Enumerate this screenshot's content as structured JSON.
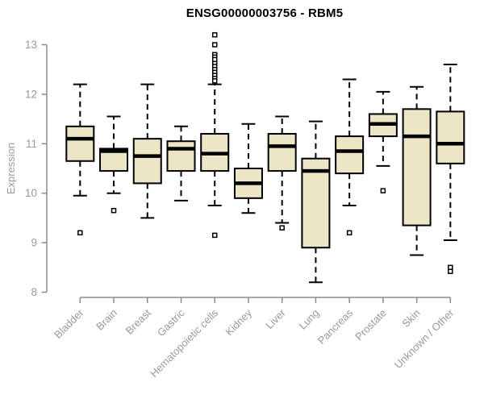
{
  "chart_data": {
    "type": "boxplot",
    "title": "ENSG00000003756 - RBM5",
    "ylabel": "Expression",
    "xlabel": "",
    "ylim": [
      8,
      13.3
    ],
    "yticks": [
      8,
      9,
      10,
      11,
      12,
      13
    ],
    "grid": false,
    "legend": "none",
    "colors": {
      "box_fill": "#ece5c6",
      "box_stroke": "#000000",
      "median": "#000000",
      "axis": "#8c8c8c",
      "tick_label": "#999999",
      "title": "#000000",
      "background": "#ffffff"
    },
    "categories": [
      "Bladder",
      "Brain",
      "Breast",
      "Gastric",
      "Hematopoietic cells",
      "Kidney",
      "Liver",
      "Lung",
      "Pancreas",
      "Prostate",
      "Skin",
      "Unknown / Other"
    ],
    "boxes": [
      {
        "category": "Bladder",
        "whisker_low": 9.95,
        "q1": 10.65,
        "median": 11.1,
        "q3": 11.35,
        "whisker_high": 12.2,
        "outliers": [
          9.2
        ]
      },
      {
        "category": "Brain",
        "whisker_low": 10.0,
        "q1": 10.45,
        "median": 10.85,
        "q3": 10.9,
        "whisker_high": 11.55,
        "outliers": [
          9.65
        ]
      },
      {
        "category": "Breast",
        "whisker_low": 9.5,
        "q1": 10.2,
        "median": 10.75,
        "q3": 11.1,
        "whisker_high": 12.2,
        "outliers": []
      },
      {
        "category": "Gastric",
        "whisker_low": 9.85,
        "q1": 10.45,
        "median": 10.9,
        "q3": 11.05,
        "whisker_high": 11.35,
        "outliers": []
      },
      {
        "category": "Hematopoietic cells",
        "whisker_low": 9.75,
        "q1": 10.45,
        "median": 10.8,
        "q3": 11.2,
        "whisker_high": 12.2,
        "outliers": [
          13.2,
          13.0,
          12.8,
          12.75,
          12.7,
          12.62,
          12.56,
          12.5,
          12.44,
          12.38,
          12.32,
          12.27,
          9.15
        ]
      },
      {
        "category": "Kidney",
        "whisker_low": 9.6,
        "q1": 9.9,
        "median": 10.2,
        "q3": 10.5,
        "whisker_high": 11.4,
        "outliers": []
      },
      {
        "category": "Liver",
        "whisker_low": 9.4,
        "q1": 10.45,
        "median": 10.95,
        "q3": 11.2,
        "whisker_high": 11.55,
        "outliers": [
          9.3
        ]
      },
      {
        "category": "Lung",
        "whisker_low": 8.2,
        "q1": 8.9,
        "median": 10.45,
        "q3": 10.7,
        "whisker_high": 11.45,
        "outliers": []
      },
      {
        "category": "Pancreas",
        "whisker_low": 9.75,
        "q1": 10.4,
        "median": 10.85,
        "q3": 11.15,
        "whisker_high": 12.3,
        "outliers": [
          9.2
        ]
      },
      {
        "category": "Prostate",
        "whisker_low": 10.55,
        "q1": 11.15,
        "median": 11.4,
        "q3": 11.6,
        "whisker_high": 12.05,
        "outliers": [
          10.05
        ]
      },
      {
        "category": "Skin",
        "whisker_low": 8.75,
        "q1": 9.35,
        "median": 11.15,
        "q3": 11.7,
        "whisker_high": 12.15,
        "outliers": []
      },
      {
        "category": "Unknown / Other",
        "whisker_low": 9.05,
        "q1": 10.6,
        "median": 11.0,
        "q3": 11.65,
        "whisker_high": 12.6,
        "outliers": [
          8.5,
          8.42
        ]
      }
    ]
  }
}
